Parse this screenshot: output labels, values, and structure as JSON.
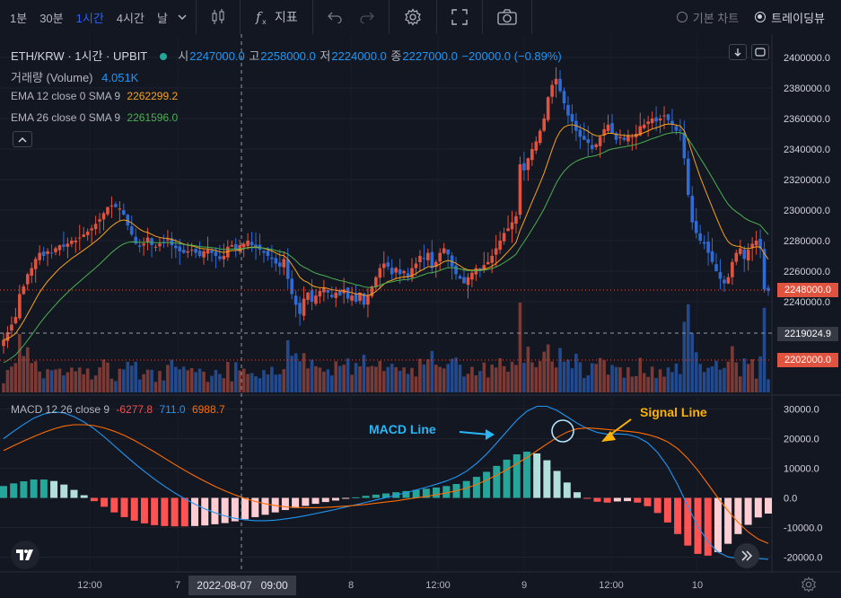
{
  "toolbar": {
    "timeframes": [
      "1분",
      "30분",
      "1시간",
      "4시간",
      "날"
    ],
    "active_index": 2,
    "indicators_label": "지표",
    "basic_chart": "기본 차트",
    "tradingview": "트레이딩뷰"
  },
  "header": {
    "symbol": "ETH/KRW · 1시간 · UPBIT",
    "open_label": "시",
    "open": "2247000.0",
    "high_label": "고",
    "high": "2258000.0",
    "low_label": "저",
    "low": "2224000.0",
    "close_label": "종",
    "close": "2227000.0",
    "change": "−20000.0 (−0.89%)"
  },
  "legends": {
    "volume_label": "거래량 (Volume)",
    "volume_value": "4.051K",
    "ema12_label": "EMA 12 close 0 SMA 9",
    "ema12_value": "2262299.2",
    "ema26_label": "EMA 26 close 0 SMA 9",
    "ema26_value": "2261596.0",
    "macd_label": "MACD 12 26 close 9",
    "macd_hist": "-6277.8",
    "macd_line": "711.0",
    "macd_signal": "6988.7"
  },
  "annotations": {
    "macd_line_label": "MACD Line",
    "signal_line_label": "Signal Line"
  },
  "price_tags": {
    "current": "2248000.0",
    "crosshair": "2219024.9",
    "reference": "2202000.0"
  },
  "crosshair_date": "2022-08-07   09:00",
  "colors": {
    "up": "#ef5350",
    "down": "#2962ff",
    "ema12": "#f7a21b",
    "ema26": "#4caf50",
    "macd": "#2196f3",
    "signal": "#ff6d00",
    "hist_pos": "#26a69a",
    "hist_neg": "#ef5350"
  },
  "chart_data": [
    {
      "type": "candlestick",
      "title": "ETH/KRW 1시간 UPBIT",
      "ylim": [
        2180000,
        2410000
      ],
      "y_ticks": [
        2240000,
        2260000,
        2280000,
        2300000,
        2320000,
        2340000,
        2360000,
        2380000,
        2400000
      ],
      "x_ticks": [
        "12:00",
        "7",
        "8",
        "12:00",
        "9",
        "12:00",
        "10"
      ],
      "close": [
        2215000,
        2220000,
        2225000,
        2230000,
        2245000,
        2250000,
        2258000,
        2262000,
        2268000,
        2272000,
        2270000,
        2273000,
        2272000,
        2275000,
        2277000,
        2276000,
        2278000,
        2280000,
        2280000,
        2282000,
        2284000,
        2286000,
        2288000,
        2291000,
        2294000,
        2298000,
        2302000,
        2303000,
        2302000,
        2301000,
        2297000,
        2290000,
        2284000,
        2278000,
        2276000,
        2278000,
        2282000,
        2277000,
        2276000,
        2278000,
        2279000,
        2281000,
        2277000,
        2275000,
        2273000,
        2272000,
        2273000,
        2274000,
        2272000,
        2270000,
        2273000,
        2274000,
        2272000,
        2270000,
        2268000,
        2270000,
        2276000,
        2277000,
        2274000,
        2277000,
        2278000,
        2280000,
        2277000,
        2276000,
        2274000,
        2272000,
        2270000,
        2268000,
        2265000,
        2263000,
        2268000,
        2255000,
        2245000,
        2238000,
        2232000,
        2242000,
        2246000,
        2240000,
        2244000,
        2247000,
        2249000,
        2246000,
        2243000,
        2246000,
        2244000,
        2248000,
        2242000,
        2244000,
        2240000,
        2246000,
        2238000,
        2244000,
        2250000,
        2256000,
        2262000,
        2265000,
        2263000,
        2258000,
        2262000,
        2258000,
        2260000,
        2256000,
        2262000,
        2265000,
        2270000,
        2268000,
        2272000,
        2262000,
        2266000,
        2272000,
        2275000,
        2271000,
        2263000,
        2258000,
        2255000,
        2252000,
        2256000,
        2259000,
        2262000,
        2261000,
        2264000,
        2266000,
        2270000,
        2275000,
        2280000,
        2285000,
        2288000,
        2292000,
        2296000,
        2330000,
        2326000,
        2334000,
        2340000,
        2345000,
        2352000,
        2360000,
        2374000,
        2382000,
        2386000,
        2378000,
        2370000,
        2362000,
        2358000,
        2352000,
        2348000,
        2346000,
        2344000,
        2340000,
        2343000,
        2348000,
        2353000,
        2356000,
        2350000,
        2346000,
        2348000,
        2346000,
        2349000,
        2348000,
        2350000,
        2355000,
        2356000,
        2358000,
        2360000,
        2358000,
        2360000,
        2362000,
        2359000,
        2356000,
        2352000,
        2352000,
        2334000,
        2310000,
        2292000,
        2285000,
        2280000,
        2278000,
        2272000,
        2266000,
        2260000,
        2255000,
        2252000,
        2256000,
        2266000,
        2272000,
        2275000,
        2268000,
        2274000,
        2278000,
        2280000,
        2275000,
        2248000,
        2247000
      ]
    },
    {
      "type": "line",
      "title": "MACD 12 26 close 9",
      "ylim": [
        -22000,
        32000
      ],
      "y_ticks": [
        -20000,
        -10000,
        0,
        10000,
        20000,
        30000
      ],
      "series": [
        {
          "name": "MACD Line",
          "values": [
            20000,
            22500,
            24800,
            26900,
            28300,
            29000,
            28700,
            27400,
            25600,
            23300,
            20600,
            17600,
            14600,
            11700,
            8900,
            6300,
            3900,
            1700,
            -300,
            -2100,
            -3700,
            -5000,
            -6100,
            -6900,
            -7400,
            -7700,
            -7700,
            -7500,
            -7100,
            -6600,
            -6000,
            -5300,
            -4600,
            -3900,
            -3100,
            -2300,
            -1500,
            -700,
            100,
            900,
            1800,
            2700,
            3600,
            4600,
            5700,
            7100,
            9000,
            11600,
            14800,
            18500,
            22400,
            26200,
            29200,
            30900,
            30900,
            29500,
            27400,
            25200,
            23400,
            22100,
            21500,
            21600,
            21400,
            20500,
            18600,
            15300,
            10600,
            4400,
            -2800,
            -9600,
            -14800,
            -18300,
            -19900,
            -20500,
            -20600,
            -20500,
            -20700
          ]
        },
        {
          "name": "Signal Line",
          "values": [
            16000,
            17600,
            19200,
            20700,
            22100,
            23300,
            24200,
            24700,
            24700,
            24400,
            23600,
            22500,
            21100,
            19400,
            17500,
            15500,
            13400,
            11300,
            9300,
            7400,
            5600,
            3900,
            2400,
            1000,
            -200,
            -1200,
            -2000,
            -2600,
            -3000,
            -3200,
            -3300,
            -3300,
            -3200,
            -3000,
            -2800,
            -2500,
            -2200,
            -1800,
            -1400,
            -1000,
            -500,
            0,
            500,
            1100,
            1700,
            2400,
            3300,
            4500,
            6000,
            7700,
            9500,
            11500,
            13600,
            15900,
            18200,
            20400,
            22200,
            23300,
            23600,
            23400,
            23100,
            22800,
            22500,
            22100,
            21400,
            20400,
            18900,
            16600,
            13300,
            9300,
            4700,
            0,
            -4400,
            -8300,
            -11500,
            -13900,
            -15400
          ]
        }
      ],
      "histogram": [
        4000,
        4900,
        5600,
        6200,
        6200,
        5700,
        4500,
        2700,
        900,
        -1100,
        -3000,
        -4900,
        -6500,
        -7700,
        -8600,
        -9200,
        -9500,
        -9600,
        -9600,
        -9500,
        -9300,
        -8900,
        -8500,
        -7900,
        -7200,
        -6500,
        -5700,
        -4900,
        -4100,
        -3400,
        -2700,
        -2000,
        -1400,
        -900,
        -300,
        200,
        700,
        1100,
        1500,
        1900,
        2300,
        2700,
        3100,
        3500,
        4000,
        4700,
        5700,
        7100,
        8800,
        10800,
        12900,
        14700,
        15600,
        15000,
        12700,
        9100,
        5200,
        1900,
        -200,
        -1300,
        -1600,
        -1200,
        -1100,
        -1600,
        -2800,
        -5100,
        -8300,
        -12200,
        -16100,
        -18900,
        -19500,
        -18300,
        -15500,
        -12200,
        -9100,
        -6600,
        -5300
      ]
    }
  ]
}
